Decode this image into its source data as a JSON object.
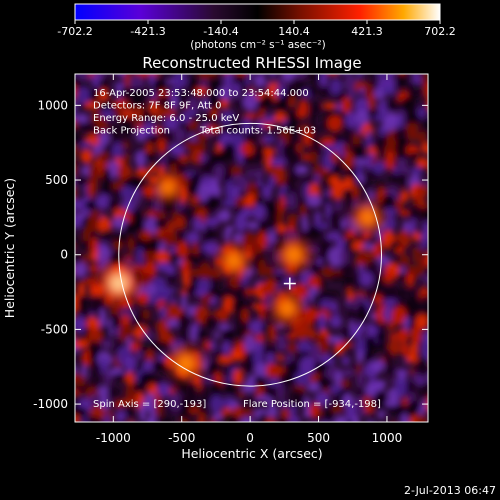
{
  "chart_data": {
    "type": "heatmap",
    "title": "Reconstructed RHESSI Image",
    "xlabel": "Heliocentric X (arcsec)",
    "ylabel": "Heliocentric Y (arcsec)",
    "xlim": [
      -1280,
      1300
    ],
    "ylim": [
      -1120,
      1210
    ],
    "x_ticks": [
      -1000,
      -500,
      0,
      500,
      1000
    ],
    "y_ticks": [
      -1000,
      -500,
      0,
      500,
      1000
    ],
    "colorbar": {
      "min": -702.2,
      "max": 702.2,
      "tick_values": [
        -702.2,
        -421.3,
        -140.4,
        140.4,
        421.3,
        702.2
      ],
      "tick_labels": [
        "-702.2",
        "-421.3",
        "-140.4",
        "140.4",
        "421.3",
        "702.2"
      ],
      "unit_label": "(photons cm⁻² s⁻¹ asec⁻²)",
      "colors": [
        "#0000ff",
        "#6a00c8",
        "#2a0a2a",
        "#000000",
        "#7a1000",
        "#ff2000",
        "#ffa800",
        "#ffffff"
      ]
    },
    "annotations": [
      "16-Apr-2005 23:53:48.000 to 23:54:44.000",
      "Detectors: 7F 8F 9F, Att 0",
      "Energy Range: 6.0 - 25.0 keV",
      "Back Projection",
      "Total counts: 1.56E+03"
    ],
    "footer_annotations": [
      "Spin Axis = [290,-193]",
      "Flare Position = [-934,-198]"
    ],
    "solar_limb": {
      "center": [
        0,
        0
      ],
      "radius_arcsec": 960
    },
    "spin_axis": [
      290,
      -193
    ],
    "flare_position": [
      -934,
      -198
    ],
    "bright_features": [
      {
        "x": -960,
        "y": -190,
        "level": 1.0
      },
      {
        "x": -470,
        "y": -730,
        "level": 0.7
      },
      {
        "x": 320,
        "y": 0,
        "level": 0.65
      },
      {
        "x": 270,
        "y": -360,
        "level": 0.6
      },
      {
        "x": -120,
        "y": -40,
        "level": 0.6
      },
      {
        "x": 860,
        "y": 250,
        "level": 0.55
      },
      {
        "x": -600,
        "y": 450,
        "level": 0.5
      }
    ]
  },
  "timestamp": "2-Jul-2013 06:47"
}
